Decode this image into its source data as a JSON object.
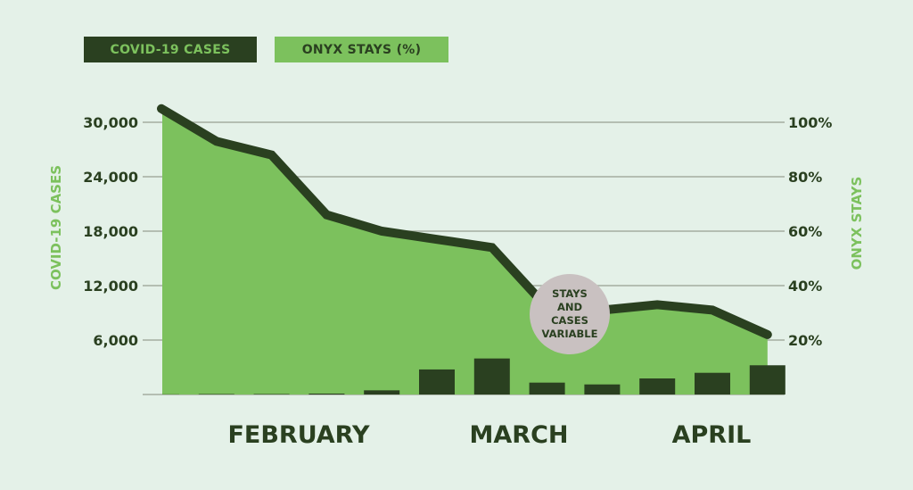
{
  "chart_data": {
    "type": "bar+area-line",
    "legend": [
      {
        "label": "COVID-19 CASES",
        "color": "#2a4020"
      },
      {
        "label": "ONYX STAYS (%)",
        "color": "#7cc15d"
      }
    ],
    "legend_placement": "top-left",
    "ylabel_left": "COVID-19 CASES",
    "ylabel_right": "ONYX STAYS",
    "left_ticks": [
      "30,000",
      "24,000",
      "18,000",
      "12,000",
      "6,000"
    ],
    "right_ticks": [
      "100%",
      "80%",
      "60%",
      "40%",
      "20%"
    ],
    "ylim_left": [
      0,
      30000
    ],
    "ylim_right": [
      0,
      100
    ],
    "grid": true,
    "month_labels": [
      "FEBRUARY",
      "MARCH",
      "APRIL"
    ],
    "series": [
      {
        "name": "COVID-19 CASES",
        "type": "bar",
        "axis": "left",
        "color": "#2a4020",
        "values": [
          20,
          50,
          50,
          100,
          460,
          2760,
          3970,
          1310,
          1110,
          1770,
          2390,
          3220
        ]
      },
      {
        "name": "ONYX STAYS (%)",
        "type": "area-line",
        "axis": "right",
        "fill": "#7cc15d",
        "line": "#2a4020",
        "values": [
          105,
          93,
          88,
          66,
          60,
          57,
          54,
          32,
          31,
          33,
          31,
          22
        ]
      }
    ],
    "annotation": {
      "text": [
        "STAYS",
        "AND",
        "CASES",
        "VARIABLE"
      ],
      "color": "#c9c1c1",
      "at_index": 7
    }
  }
}
